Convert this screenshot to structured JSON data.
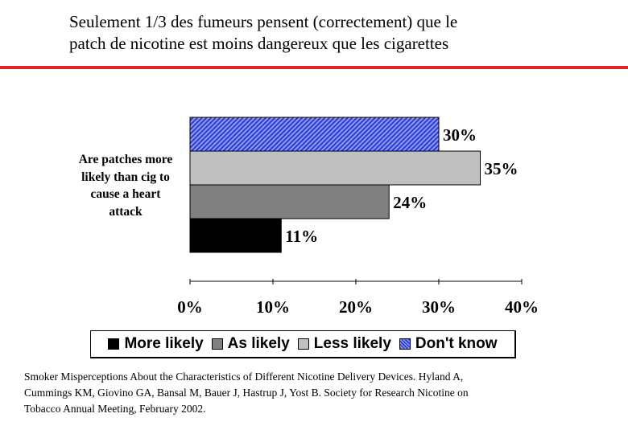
{
  "title": {
    "line1": "Seulement 1/3 des fumeurs pensent (correctement) que le",
    "line2": "patch de nicotine est moins dangereux que les cigarettes"
  },
  "colors": {
    "accent_rule": "#e0262b",
    "more_likely": "#000000",
    "as_likely": "#808080",
    "less_likely": "#c0c0c0",
    "dont_know": "#2a3ad6"
  },
  "chart_data": {
    "type": "bar",
    "orientation": "horizontal",
    "category_label": {
      "line1": "Are patches more",
      "line2": "likely than cig to",
      "line3": "cause a heart",
      "line4": "attack"
    },
    "series": [
      {
        "name": "Don't know",
        "value": 30,
        "label": "30%",
        "pattern": "hatched"
      },
      {
        "name": "Less likely",
        "value": 35,
        "label": "35%",
        "pattern": "solid"
      },
      {
        "name": "As likely",
        "value": 24,
        "label": "24%",
        "pattern": "solid"
      },
      {
        "name": "More likely",
        "value": 11,
        "label": "11%",
        "pattern": "solid"
      }
    ],
    "xlim": [
      0,
      40
    ],
    "x_ticks": [
      0,
      10,
      20,
      30,
      40
    ],
    "x_tick_labels": [
      "0%",
      "10%",
      "20%",
      "30%",
      "40%"
    ],
    "legend": [
      "More likely",
      "As likely",
      "Less likely",
      "Don't know"
    ],
    "legend_position": "bottom"
  },
  "source": {
    "line1": "Smoker Misperceptions About the Characteristics of Different Nicotine Delivery Devices. Hyland A,",
    "line2": "Cummings KM, Giovino GA, Bansal M, Bauer J, Hastrup J, Yost B.  Society for Research Nicotine on",
    "line3": "Tobacco Annual Meeting, February 2002."
  }
}
